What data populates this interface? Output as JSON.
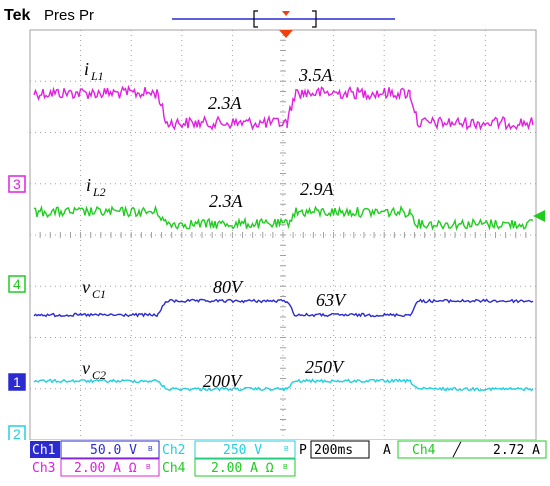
{
  "header": {
    "brand": "Tek",
    "mode": "Pres Pr"
  },
  "colors": {
    "ch1": "#2b2bd0",
    "ch2": "#22cfe0",
    "ch3": "#e020e0",
    "ch4": "#20cc20",
    "grid": "#a0a0a0",
    "trigger": "#f04010"
  },
  "channel_markers": [
    {
      "label": "3",
      "color": "#e020e0"
    },
    {
      "label": "4",
      "color": "#20cc20"
    },
    {
      "label": "1",
      "color": "#2b2bd0"
    },
    {
      "label": "2",
      "color": "#22cfe0"
    }
  ],
  "waveforms": {
    "iL1": {
      "high": 3.5,
      "low": 2.3,
      "unit": "A"
    },
    "iL2": {
      "high": 2.9,
      "low": 2.3,
      "unit": "A"
    },
    "vC1": {
      "high": 80,
      "low": 63,
      "unit": "V"
    },
    "vC2": {
      "high": 250,
      "low": 200,
      "unit": "V"
    }
  },
  "annotations": {
    "iL1": {
      "main": "i",
      "sub": "L1"
    },
    "iL2": {
      "main": "i",
      "sub": "L2"
    },
    "vC1": {
      "main": "v",
      "sub": "C1"
    },
    "vC2": {
      "main": "v",
      "sub": "C2"
    },
    "val_35A": "3.5A",
    "val_23A_top": "2.3A",
    "val_23A_bottom": "2.3A",
    "val_29A": "2.9A",
    "val_80V": "80V",
    "val_63V": "63V",
    "val_200V": "200V",
    "val_250V": "250V"
  },
  "status": {
    "ch1_label": "Ch1",
    "ch1_scale": "50.0 V",
    "ch2_label": "Ch2",
    "ch2_scale": "250 V",
    "ch3_label": "Ch3",
    "ch3_scale": "2.00 A Ω",
    "ch4_label": "Ch4",
    "ch4_scale": "2.00 A Ω",
    "bw_symbol": "B",
    "timebase_prefix": "P",
    "timebase": "200ms",
    "trigger_mode": "A",
    "trigger_source": "Ch4",
    "trigger_slope": "╱",
    "trigger_level": "2.72 A"
  }
}
